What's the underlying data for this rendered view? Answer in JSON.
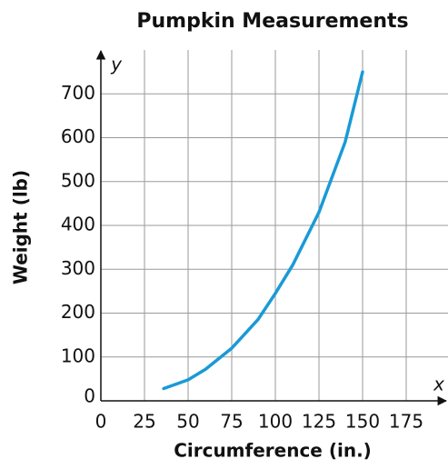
{
  "chart_data": {
    "type": "line",
    "title": "Pumpkin Measurements",
    "x_label": "Circumference (in.)",
    "y_label": "Weight (lb)",
    "x_axis_symbol": "x",
    "y_axis_symbol": "y",
    "series": [
      {
        "color": "#1a9ad6",
        "x": [
          36,
          50,
          60,
          75,
          90,
          100,
          110,
          125,
          140,
          150
        ],
        "values": [
          28,
          48,
          72,
          120,
          185,
          245,
          310,
          430,
          590,
          750
        ]
      }
    ],
    "xlim": [
      0,
      200
    ],
    "ylim": [
      0,
      800
    ],
    "xticks": [
      0,
      25,
      50,
      75,
      100,
      125,
      150,
      175
    ],
    "yticks": [
      0,
      100,
      200,
      300,
      400,
      500,
      600,
      700
    ],
    "grid": true
  }
}
